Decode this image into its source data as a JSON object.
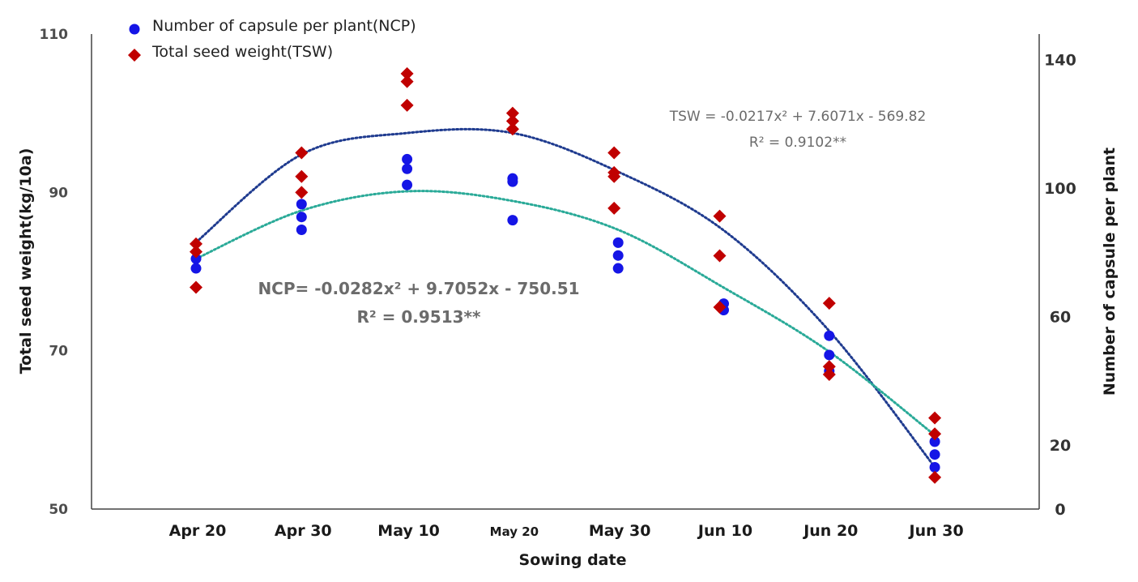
{
  "chart_data": {
    "type": "scatter",
    "xlabel": "Sowing date",
    "ylabel_left": "Total seed weight(kg/10a)",
    "ylabel_right": "Number of capsule per plant",
    "categories": [
      "Apr 20",
      "Apr 30",
      "May 10",
      "May 20",
      "May 30",
      "Jun 10",
      "Jun 20",
      "Jun 30"
    ],
    "y_left": {
      "range": [
        50,
        110
      ],
      "ticks": [
        "50",
        "70",
        "90",
        "110"
      ]
    },
    "y_right": {
      "range": [
        0,
        148
      ],
      "ticks": [
        "0",
        "20",
        "60",
        "100",
        "140"
      ]
    },
    "legend": [
      {
        "name": "Number of capsule per plant(NCP)",
        "marker": "circle",
        "color": "#1515e6"
      },
      {
        "name": "Total seed weight(TSW)",
        "marker": "diamond",
        "color": "#c00000"
      }
    ],
    "series": [
      {
        "name": "NCP",
        "axis": "right",
        "color": "#1515e6",
        "points": [
          {
            "x": 0,
            "y": 78
          },
          {
            "x": 0,
            "y": 75
          },
          {
            "x": 1,
            "y": 95
          },
          {
            "x": 1,
            "y": 91
          },
          {
            "x": 1,
            "y": 87
          },
          {
            "x": 2,
            "y": 109
          },
          {
            "x": 2,
            "y": 106
          },
          {
            "x": 2,
            "y": 101
          },
          {
            "x": 3,
            "y": 103
          },
          {
            "x": 3,
            "y": 102
          },
          {
            "x": 3,
            "y": 90
          },
          {
            "x": 4,
            "y": 83
          },
          {
            "x": 4,
            "y": 79
          },
          {
            "x": 4,
            "y": 75
          },
          {
            "x": 5,
            "y": 64
          },
          {
            "x": 5,
            "y": 62
          },
          {
            "x": 6,
            "y": 54
          },
          {
            "x": 6,
            "y": 48
          },
          {
            "x": 6,
            "y": 43
          },
          {
            "x": 7,
            "y": 21
          },
          {
            "x": 7,
            "y": 17
          },
          {
            "x": 7,
            "y": 13
          }
        ]
      },
      {
        "name": "TSW",
        "axis": "left",
        "color": "#c00000",
        "points": [
          {
            "x": 0,
            "y": 83.5
          },
          {
            "x": 0,
            "y": 82.5
          },
          {
            "x": 0,
            "y": 78
          },
          {
            "x": 1,
            "y": 95
          },
          {
            "x": 1,
            "y": 92
          },
          {
            "x": 1,
            "y": 90
          },
          {
            "x": 2,
            "y": 105
          },
          {
            "x": 2,
            "y": 104
          },
          {
            "x": 2,
            "y": 101
          },
          {
            "x": 3,
            "y": 100
          },
          {
            "x": 3,
            "y": 99
          },
          {
            "x": 3,
            "y": 98
          },
          {
            "x": 4,
            "y": 95
          },
          {
            "x": 4,
            "y": 92.5
          },
          {
            "x": 4,
            "y": 92
          },
          {
            "x": 4,
            "y": 88
          },
          {
            "x": 5,
            "y": 87
          },
          {
            "x": 5,
            "y": 82
          },
          {
            "x": 5,
            "y": 75.5
          },
          {
            "x": 6,
            "y": 76
          },
          {
            "x": 6,
            "y": 68
          },
          {
            "x": 6,
            "y": 67
          },
          {
            "x": 7,
            "y": 61.5
          },
          {
            "x": 7,
            "y": 59.5
          },
          {
            "x": 7,
            "y": 54
          }
        ]
      }
    ],
    "trendlines": [
      {
        "name": "TSW",
        "axis": "left",
        "color": "#1f3b8f",
        "equation": "TSW = -0.0217x² + 7.6071x - 569.82",
        "r2": "R² = 0.9102**",
        "values": [
          83.7,
          94.8,
          97.5,
          97.5,
          92.6,
          85.2,
          72.5,
          55.3
        ]
      },
      {
        "name": "NCP",
        "axis": "right",
        "color": "#2aaa98",
        "equation": "NCP= -0.0282x² + 9.7052x - 750.51",
        "r2": "R² = 0.9513**",
        "values": [
          78,
          93,
          99,
          96,
          87,
          69,
          49,
          23
        ]
      }
    ]
  }
}
